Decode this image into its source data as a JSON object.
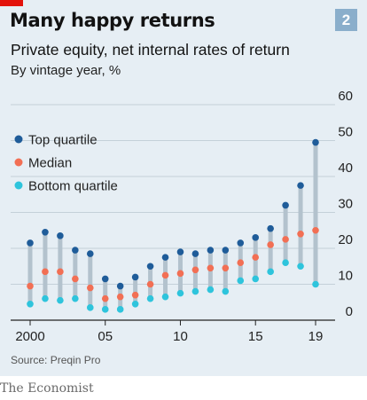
{
  "header": {
    "title": "Many happy returns",
    "badge": "2",
    "subtitle": "Private equity, net internal rates of return",
    "subtitle2": "By vintage year, %"
  },
  "footer": {
    "source": "Source: Preqin Pro",
    "publisher": "The Economist"
  },
  "colors": {
    "top_quartile": "#1f5c99",
    "median": "#f26f54",
    "bottom_quartile": "#2ec4dc",
    "range_bar": "#b3c2cd",
    "panel": "#e6eef4",
    "accent_red": "#e3120b",
    "badge": "#8aaecb"
  },
  "chart_data": {
    "type": "scatter",
    "title": "Many happy returns",
    "subtitle": "Private equity, net internal rates of return",
    "ylabel": "By vintage year, %",
    "x": [
      2000,
      2001,
      2002,
      2003,
      2004,
      2005,
      2006,
      2007,
      2008,
      2009,
      2010,
      2011,
      2012,
      2013,
      2014,
      2015,
      2016,
      2017,
      2018,
      2019
    ],
    "x_ticks": [
      {
        "value": 2000,
        "label": "2000"
      },
      {
        "value": 2005,
        "label": "05"
      },
      {
        "value": 2010,
        "label": "10"
      },
      {
        "value": 2015,
        "label": "15"
      },
      {
        "value": 2019,
        "label": "19"
      }
    ],
    "ylim": [
      0,
      60
    ],
    "y_ticks": [
      0,
      10,
      20,
      30,
      40,
      50,
      60
    ],
    "grid": true,
    "legend_position": "top-left",
    "series": [
      {
        "name": "Top quartile",
        "values": [
          21.5,
          24.5,
          23.5,
          19.5,
          18.5,
          11.5,
          9.5,
          12,
          15,
          17.5,
          19,
          18.5,
          19.5,
          19.5,
          21.5,
          23,
          25.5,
          32,
          37.5,
          49.5
        ]
      },
      {
        "name": "Median",
        "values": [
          9.5,
          13.5,
          13.5,
          11.5,
          9,
          6,
          6.5,
          7,
          10,
          12.5,
          13,
          14,
          14.5,
          14.5,
          16,
          17.5,
          21,
          22.5,
          24,
          25
        ]
      },
      {
        "name": "Bottom quartile",
        "values": [
          4.5,
          6,
          5.5,
          6,
          3.5,
          3,
          3,
          4.5,
          6,
          6.5,
          7.5,
          8,
          8.5,
          8,
          11,
          11.5,
          13.5,
          16,
          15,
          10
        ]
      }
    ]
  }
}
